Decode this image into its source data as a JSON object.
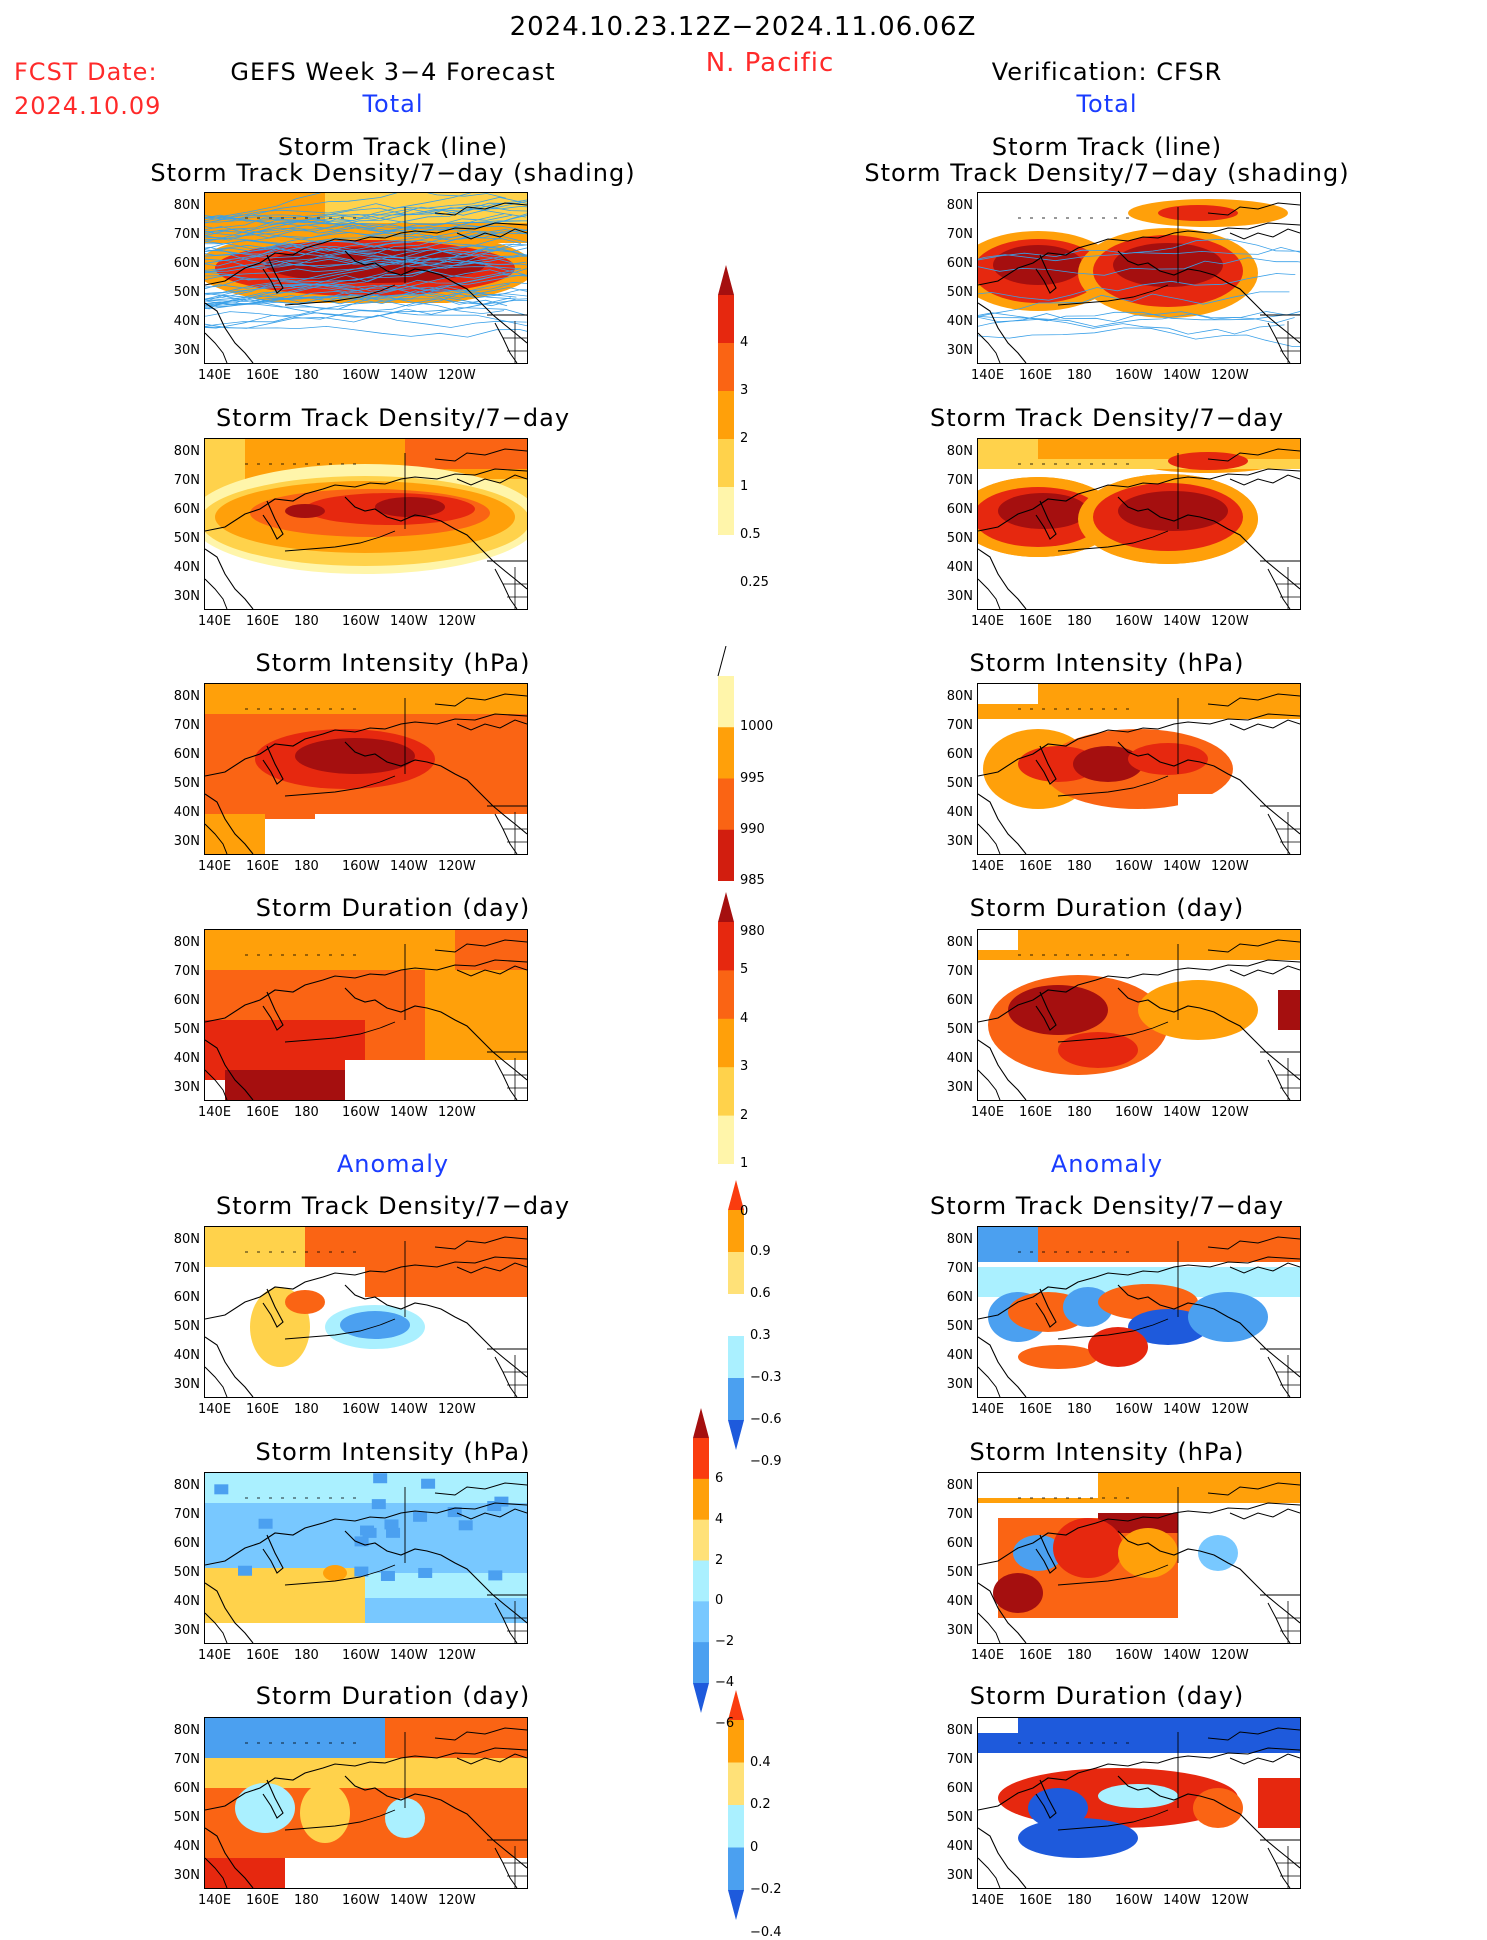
{
  "header": {
    "period": "2024.10.23.12Z−2024.11.06.06Z",
    "region": "N. Pacific",
    "fcst_label": "FCST Date:",
    "fcst_date": "2024.10.09",
    "left_title": "GEFS Week 3−4 Forecast",
    "right_title": "Verification: CFSR",
    "total_left": "Total",
    "total_right": "Total",
    "anomaly_left": "Anomaly",
    "anomaly_right": "Anomaly"
  },
  "panel_titles": {
    "track_line": "Storm Track (line)",
    "track_density_shading": "Storm Track Density/7−day (shading)",
    "track_density": "Storm Track Density/7−day",
    "intensity": "Storm Intensity (hPa)",
    "duration": "Storm Duration (day)"
  },
  "axes": {
    "lat_ticks": [
      "80N",
      "70N",
      "60N",
      "50N",
      "40N",
      "30N"
    ],
    "lon_ticks": [
      "140E",
      "160E",
      "180",
      "160W",
      "140W",
      "120W"
    ]
  },
  "colorbars": {
    "track_density_total": {
      "labels": [
        "4",
        "3",
        "2",
        "1",
        "0.5",
        "0.25"
      ],
      "colors": [
        "#a50f0f",
        "#e6280f",
        "#fa6414",
        "#ffa00a",
        "#ffd24b",
        "#fff5aa"
      ]
    },
    "intensity_total": {
      "labels": [
        "1000",
        "995",
        "990",
        "985",
        "980"
      ],
      "colors": [
        "#fff5aa",
        "#ffa00a",
        "#fa6414",
        "#d21e0f",
        "#a50f0f"
      ]
    },
    "duration_total": {
      "labels": [
        "5",
        "4",
        "3",
        "2",
        "1",
        "0"
      ],
      "colors": [
        "#a50f0f",
        "#e6280f",
        "#fa6414",
        "#ffa00a",
        "#ffd24b",
        "#fff5aa"
      ]
    },
    "track_density_anom": {
      "labels": [
        "0.9",
        "0.6",
        "0.3",
        "−0.3",
        "−0.6",
        "−0.9"
      ],
      "colors": [
        "#fa3c0f",
        "#ffa00a",
        "#ffe178",
        "#ffffff",
        "#aaf0ff",
        "#4ba0f0",
        "#1e5adc"
      ]
    },
    "intensity_anom": {
      "labels": [
        "6",
        "4",
        "2",
        "0",
        "−2",
        "−4",
        "−6"
      ],
      "colors": [
        "#a50f0f",
        "#fa3c0f",
        "#ffa00a",
        "#ffe178",
        "#aaf0ff",
        "#78c8ff",
        "#4ba0f0",
        "#1e5adc"
      ]
    },
    "duration_anom": {
      "labels": [
        "0.4",
        "0.2",
        "0",
        "−0.2",
        "−0.4"
      ],
      "colors": [
        "#fa3c0f",
        "#ffa00a",
        "#ffe178",
        "#aaf0ff",
        "#4ba0f0",
        "#1e5adc"
      ]
    }
  },
  "colors": {
    "red_text": "#ff2a2a",
    "blue_text": "#1a3cff",
    "track_line": "#3aa0e8"
  }
}
